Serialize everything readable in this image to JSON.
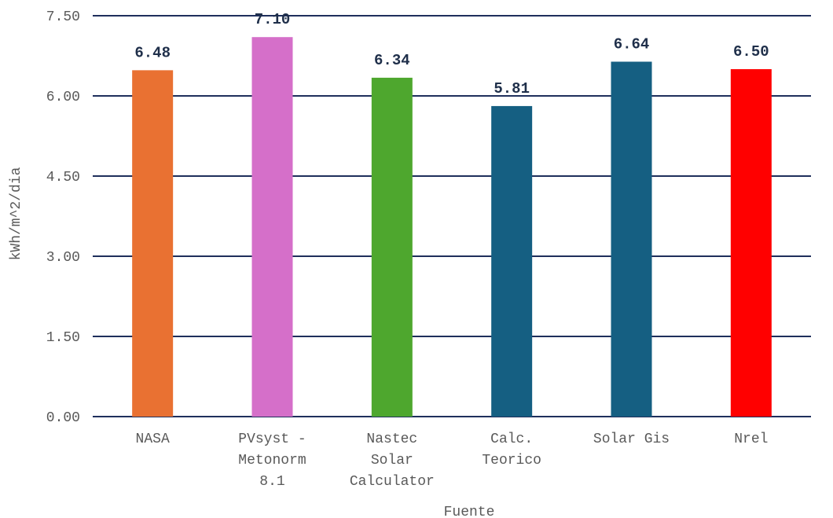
{
  "chart_data": {
    "type": "bar",
    "title": "",
    "xlabel": "Fuente",
    "ylabel": "kWh/m^2/dia",
    "ylim": [
      0,
      7.5
    ],
    "yticks": [
      "0.00",
      "1.50",
      "3.00",
      "4.50",
      "6.00",
      "7.50"
    ],
    "grid": true,
    "legend": "none",
    "categories": [
      [
        "NASA"
      ],
      [
        "PVsyst -",
        "Metonorm",
        "8.1"
      ],
      [
        "Nastec",
        "Solar",
        "Calculator"
      ],
      [
        "Calc.",
        "Teorico"
      ],
      [
        "Solar Gis"
      ],
      [
        "Nrel"
      ]
    ],
    "values": [
      6.48,
      7.1,
      6.34,
      5.81,
      6.64,
      6.5
    ],
    "value_labels": [
      "6.48",
      "7.10",
      "6.34",
      "5.81",
      "6.64",
      "6.50"
    ],
    "colors": [
      "#E97132",
      "#D56FC9",
      "#4EA72E",
      "#155F82",
      "#155F82",
      "#FF0000"
    ],
    "gridline_color": "#1F2F5C",
    "label_color": "#595959",
    "value_label_color": "#1F2F4A"
  }
}
